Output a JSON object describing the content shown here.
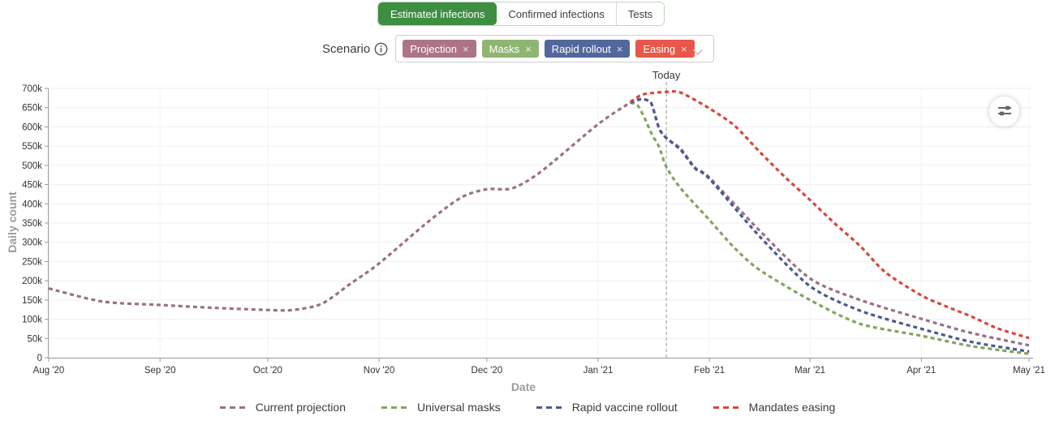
{
  "tabs": {
    "items": [
      {
        "label": "Estimated infections",
        "selected": true
      },
      {
        "label": "Confirmed infections",
        "selected": false
      },
      {
        "label": "Tests",
        "selected": false
      }
    ],
    "selected_color": "#3e8e42"
  },
  "scenario": {
    "label": "Scenario",
    "remove_glyph": "×",
    "tags": [
      {
        "label": "Projection",
        "color": "#ad7486"
      },
      {
        "label": "Masks",
        "color": "#8fb572"
      },
      {
        "label": "Rapid rollout",
        "color": "#52679c"
      },
      {
        "label": "Easing",
        "color": "#e8574a"
      }
    ]
  },
  "chart_data": {
    "type": "line",
    "title": "",
    "xlabel": "Date",
    "ylabel": "Daily count",
    "x_range": [
      "2020-08-01",
      "2021-05-01"
    ],
    "x_ticks": [
      "Aug '20",
      "Sep '20",
      "Oct '20",
      "Nov '20",
      "Dec '20",
      "Jan '21",
      "Feb '21",
      "Mar '21",
      "Apr '21",
      "May '21"
    ],
    "y_ticks": [
      "0",
      "50k",
      "100k",
      "150k",
      "200k",
      "250k",
      "300k",
      "350k",
      "400k",
      "450k",
      "500k",
      "550k",
      "600k",
      "650k",
      "700k"
    ],
    "ylim": [
      0,
      700000
    ],
    "grid": true,
    "legend_position": "bottom",
    "today": {
      "date": "2021-01-20",
      "label": "Today"
    },
    "line_style": "dashed",
    "series": [
      {
        "name": "Current projection",
        "color": "#9a7086",
        "points": [
          [
            "2020-08-01",
            180000
          ],
          [
            "2020-08-16",
            146000
          ],
          [
            "2020-09-01",
            137000
          ],
          [
            "2020-09-15",
            130000
          ],
          [
            "2020-10-01",
            124000
          ],
          [
            "2020-10-08",
            124000
          ],
          [
            "2020-10-16",
            140000
          ],
          [
            "2020-10-24",
            192000
          ],
          [
            "2020-11-01",
            245000
          ],
          [
            "2020-11-15",
            356000
          ],
          [
            "2020-11-24",
            417000
          ],
          [
            "2020-12-01",
            438000
          ],
          [
            "2020-12-08",
            440000
          ],
          [
            "2020-12-16",
            483000
          ],
          [
            "2021-01-01",
            607000
          ],
          [
            "2021-01-10",
            663000
          ],
          [
            "2021-01-13",
            672000
          ],
          [
            "2021-01-15",
            668000
          ],
          [
            "2021-01-16",
            657000
          ],
          [
            "2021-01-18",
            596000
          ],
          [
            "2021-01-20",
            571000
          ],
          [
            "2021-01-24",
            543000
          ],
          [
            "2021-01-28",
            494000
          ],
          [
            "2021-02-01",
            468000
          ],
          [
            "2021-02-15",
            330000
          ],
          [
            "2021-03-01",
            206000
          ],
          [
            "2021-03-15",
            150000
          ],
          [
            "2021-04-01",
            101000
          ],
          [
            "2021-04-15",
            64000
          ],
          [
            "2021-05-01",
            32000
          ]
        ]
      },
      {
        "name": "Universal masks",
        "color": "#84a45d",
        "points": [
          [
            "2021-01-10",
            663000
          ],
          [
            "2021-01-12",
            656000
          ],
          [
            "2021-01-14",
            622000
          ],
          [
            "2021-01-16",
            580000
          ],
          [
            "2021-01-18",
            548000
          ],
          [
            "2021-01-20",
            496000
          ],
          [
            "2021-01-24",
            440000
          ],
          [
            "2021-02-01",
            358000
          ],
          [
            "2021-02-08",
            285000
          ],
          [
            "2021-02-15",
            228000
          ],
          [
            "2021-03-01",
            150000
          ],
          [
            "2021-03-15",
            88000
          ],
          [
            "2021-04-01",
            57000
          ],
          [
            "2021-04-15",
            30000
          ],
          [
            "2021-05-01",
            10000
          ]
        ]
      },
      {
        "name": "Rapid vaccine rollout",
        "color": "#4a5a90",
        "points": [
          [
            "2021-01-10",
            663000
          ],
          [
            "2021-01-13",
            672000
          ],
          [
            "2021-01-15",
            668000
          ],
          [
            "2021-01-16",
            657000
          ],
          [
            "2021-01-18",
            596000
          ],
          [
            "2021-01-20",
            571000
          ],
          [
            "2021-01-24",
            540000
          ],
          [
            "2021-01-28",
            492000
          ],
          [
            "2021-02-01",
            465000
          ],
          [
            "2021-02-15",
            315000
          ],
          [
            "2021-03-01",
            186000
          ],
          [
            "2021-03-15",
            122000
          ],
          [
            "2021-04-01",
            75000
          ],
          [
            "2021-04-15",
            41000
          ],
          [
            "2021-05-01",
            16000
          ]
        ]
      },
      {
        "name": "Mandates easing",
        "color": "#d8473b",
        "points": [
          [
            "2021-01-10",
            665000
          ],
          [
            "2021-01-13",
            683000
          ],
          [
            "2021-01-16",
            688000
          ],
          [
            "2021-01-20",
            691000
          ],
          [
            "2021-01-24",
            689000
          ],
          [
            "2021-02-01",
            648000
          ],
          [
            "2021-02-08",
            603000
          ],
          [
            "2021-02-15",
            535000
          ],
          [
            "2021-02-22",
            470000
          ],
          [
            "2021-03-01",
            410000
          ],
          [
            "2021-03-08",
            348000
          ],
          [
            "2021-03-15",
            290000
          ],
          [
            "2021-03-22",
            222000
          ],
          [
            "2021-04-01",
            162000
          ],
          [
            "2021-04-08",
            133000
          ],
          [
            "2021-04-15",
            107000
          ],
          [
            "2021-04-22",
            77000
          ],
          [
            "2021-05-01",
            51000
          ]
        ]
      }
    ]
  }
}
